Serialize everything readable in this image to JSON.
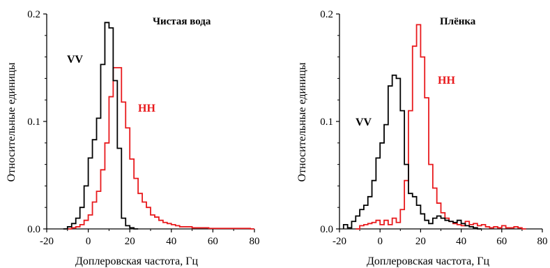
{
  "chart_data": [
    {
      "type": "line",
      "title": "Чистая вода",
      "xlabel": "Доплеровская частота, Гц",
      "ylabel": "Относительные единицы",
      "xlim": [
        -20,
        80
      ],
      "ylim": [
        0,
        0.2
      ],
      "xticks": [
        "-20",
        "0",
        "20",
        "40",
        "60",
        "80"
      ],
      "yticks": [
        "0.0",
        "0.1",
        "0.2"
      ],
      "grid": false,
      "colors": {
        "VV": "#000000",
        "HH": "#e8191c"
      },
      "series": [
        {
          "name": "VV",
          "x": [
            -12,
            -10,
            -8,
            -6,
            -4,
            -2,
            0,
            2,
            4,
            6,
            8,
            10,
            12,
            14,
            16,
            18,
            20,
            22
          ],
          "y": [
            0,
            0.002,
            0.005,
            0.01,
            0.02,
            0.04,
            0.066,
            0.083,
            0.103,
            0.153,
            0.192,
            0.187,
            0.138,
            0.075,
            0.01,
            0.003,
            0.001,
            0
          ]
        },
        {
          "name": "HH",
          "x": [
            -10,
            -8,
            -6,
            -4,
            -2,
            0,
            2,
            4,
            6,
            8,
            10,
            12,
            14,
            16,
            18,
            20,
            22,
            24,
            26,
            28,
            30,
            32,
            34,
            36,
            38,
            40,
            42,
            44,
            46,
            48,
            50,
            52,
            54,
            56,
            58,
            60,
            62,
            64,
            66,
            68,
            70,
            72,
            74,
            76,
            78
          ],
          "y": [
            0,
            0.001,
            0.002,
            0.004,
            0.008,
            0.013,
            0.025,
            0.035,
            0.055,
            0.08,
            0.123,
            0.15,
            0.15,
            0.118,
            0.094,
            0.065,
            0.047,
            0.033,
            0.025,
            0.02,
            0.013,
            0.011,
            0.008,
            0.006,
            0.005,
            0.004,
            0.003,
            0.002,
            0.002,
            0.002,
            0.001,
            0.001,
            0.001,
            0.001,
            0.0005,
            0.0005,
            0.0005,
            0.0005,
            0.0005,
            0.0005,
            0.0005,
            0.0005,
            0.0005,
            0.0005,
            0
          ]
        }
      ]
    },
    {
      "type": "line",
      "title": "Плёнка",
      "xlabel": "Доплеровская частота, Гц",
      "ylabel": "Относительные единицы",
      "xlim": [
        -20,
        80
      ],
      "ylim": [
        0,
        0.2
      ],
      "xticks": [
        "-20",
        "0",
        "20",
        "40",
        "60",
        "80"
      ],
      "yticks": [
        "0.0",
        "0.1",
        "0.2"
      ],
      "grid": false,
      "colors": {
        "VV": "#000000",
        "HH": "#e8191c"
      },
      "series": [
        {
          "name": "VV",
          "x": [
            -18,
            -16,
            -14,
            -12,
            -10,
            -8,
            -6,
            -4,
            -2,
            0,
            2,
            4,
            6,
            8,
            10,
            12,
            14,
            16,
            18,
            20,
            22,
            24,
            26,
            28,
            30,
            32,
            34,
            36,
            38,
            40,
            42,
            44,
            46,
            48
          ],
          "y": [
            0.004,
            0.001,
            0.007,
            0.012,
            0.018,
            0.022,
            0.03,
            0.045,
            0.066,
            0.08,
            0.097,
            0.133,
            0.143,
            0.14,
            0.11,
            0.06,
            0.033,
            0.03,
            0.022,
            0.014,
            0.008,
            0.005,
            0.01,
            0.012,
            0.01,
            0.008,
            0.007,
            0.006,
            0.008,
            0.005,
            0.003,
            0.002,
            0.001,
            0
          ]
        },
        {
          "name": "HH",
          "x": [
            -12,
            -10,
            -8,
            -6,
            -4,
            -2,
            0,
            2,
            4,
            6,
            8,
            10,
            12,
            14,
            16,
            18,
            20,
            22,
            24,
            26,
            28,
            30,
            32,
            34,
            36,
            38,
            40,
            42,
            44,
            46,
            48,
            50,
            52,
            54,
            56,
            58,
            60,
            62,
            64,
            66,
            68,
            70
          ],
          "y": [
            0,
            0.003,
            0.004,
            0.005,
            0.006,
            0.008,
            0.004,
            0.008,
            0.004,
            0.01,
            0.006,
            0.018,
            0.045,
            0.11,
            0.17,
            0.19,
            0.16,
            0.122,
            0.06,
            0.038,
            0.024,
            0.015,
            0.01,
            0.007,
            0.005,
            0.004,
            0.003,
            0.007,
            0.004,
            0.005,
            0.003,
            0.004,
            0.002,
            0.001,
            0.002,
            0.001,
            0.003,
            0.001,
            0.001,
            0.002,
            0.001,
            0
          ]
        }
      ]
    }
  ]
}
